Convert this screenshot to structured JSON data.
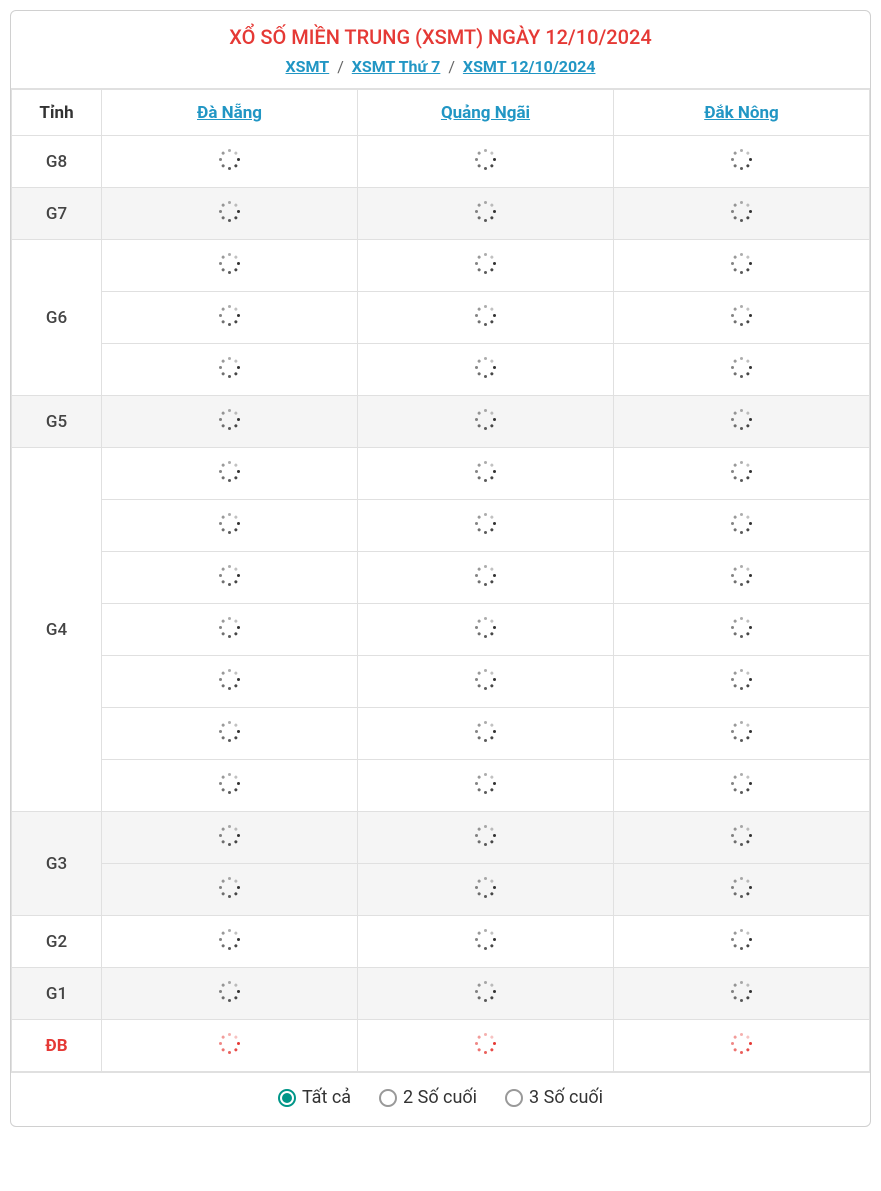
{
  "header": {
    "title": "XỔ SỐ MIỀN TRUNG (XSMT) NGÀY 12/10/2024",
    "breadcrumb": [
      {
        "label": "XSMT"
      },
      {
        "label": "XSMT Thứ 7"
      },
      {
        "label": "XSMT 12/10/2024"
      }
    ],
    "sep": "/"
  },
  "colors": {
    "title": "#e53935",
    "link": "#2196c4",
    "accent": "#009688",
    "border": "#e0e0e0",
    "shaded_bg": "#f5f5f5",
    "white_bg": "#ffffff",
    "spinner": "#333333",
    "spinner_special": "#e53935"
  },
  "table": {
    "first_col_header": "Tỉnh",
    "provinces": [
      "Đà Nẵng",
      "Quảng Ngãi",
      "Đắk Nông"
    ],
    "prizes": [
      {
        "label": "G8",
        "rows": 1,
        "shaded": false,
        "special": false
      },
      {
        "label": "G7",
        "rows": 1,
        "shaded": true,
        "special": false
      },
      {
        "label": "G6",
        "rows": 3,
        "shaded": false,
        "special": false
      },
      {
        "label": "G5",
        "rows": 1,
        "shaded": true,
        "special": false
      },
      {
        "label": "G4",
        "rows": 7,
        "shaded": false,
        "special": false
      },
      {
        "label": "G3",
        "rows": 2,
        "shaded": true,
        "special": false
      },
      {
        "label": "G2",
        "rows": 1,
        "shaded": false,
        "special": false
      },
      {
        "label": "G1",
        "rows": 1,
        "shaded": true,
        "special": false
      },
      {
        "label": "ĐB",
        "rows": 1,
        "shaded": false,
        "special": true
      }
    ],
    "cell_state": "loading"
  },
  "footer": {
    "options": [
      {
        "label": "Tất cả",
        "checked": true
      },
      {
        "label": "2 Số cuối",
        "checked": false
      },
      {
        "label": "3 Số cuối",
        "checked": false
      }
    ]
  }
}
